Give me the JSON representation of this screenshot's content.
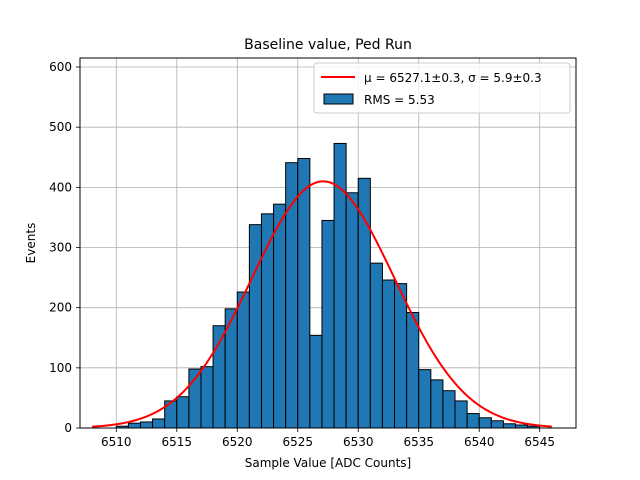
{
  "chart_data": {
    "type": "bar",
    "title": "Baseline value, Ped Run",
    "xlabel": "Sample Value [ADC Counts]",
    "ylabel": "Events",
    "xlim": [
      6507,
      6548
    ],
    "ylim": [
      0,
      615
    ],
    "x_ticks": [
      6510,
      6515,
      6520,
      6525,
      6530,
      6535,
      6540,
      6545
    ],
    "y_ticks": [
      0,
      100,
      200,
      300,
      400,
      500,
      600
    ],
    "grid": true,
    "legend_position": "top-right",
    "bin_width": 1,
    "bins": [
      {
        "x0": 6510,
        "count": 3
      },
      {
        "x0": 6511,
        "count": 8
      },
      {
        "x0": 6512,
        "count": 10
      },
      {
        "x0": 6513,
        "count": 15
      },
      {
        "x0": 6514,
        "count": 45
      },
      {
        "x0": 6515,
        "count": 52
      },
      {
        "x0": 6516,
        "count": 98
      },
      {
        "x0": 6517,
        "count": 102
      },
      {
        "x0": 6518,
        "count": 170
      },
      {
        "x0": 6519,
        "count": 198
      },
      {
        "x0": 6520,
        "count": 226
      },
      {
        "x0": 6521,
        "count": 338
      },
      {
        "x0": 6522,
        "count": 356
      },
      {
        "x0": 6523,
        "count": 372
      },
      {
        "x0": 6524,
        "count": 441
      },
      {
        "x0": 6525,
        "count": 448
      },
      {
        "x0": 6526,
        "count": 154
      },
      {
        "x0": 6527,
        "count": 345
      },
      {
        "x0": 6528,
        "count": 473
      },
      {
        "x0": 6529,
        "count": 391
      },
      {
        "x0": 6530,
        "count": 415
      },
      {
        "x0": 6531,
        "count": 274
      },
      {
        "x0": 6532,
        "count": 246
      },
      {
        "x0": 6533,
        "count": 240
      },
      {
        "x0": 6534,
        "count": 192
      },
      {
        "x0": 6535,
        "count": 97
      },
      {
        "x0": 6536,
        "count": 80
      },
      {
        "x0": 6537,
        "count": 62
      },
      {
        "x0": 6538,
        "count": 45
      },
      {
        "x0": 6539,
        "count": 24
      },
      {
        "x0": 6540,
        "count": 17
      },
      {
        "x0": 6541,
        "count": 12
      },
      {
        "x0": 6542,
        "count": 7
      },
      {
        "x0": 6543,
        "count": 5
      },
      {
        "x0": 6544,
        "count": 3
      }
    ],
    "fit": {
      "mu": 6527.1,
      "sigma": 5.9,
      "amplitude": 410,
      "x_range": [
        6508,
        6546
      ]
    },
    "series": [
      {
        "name": "$\\mu = 6527.1 \\pm 0.3$, $\\sigma = 5.9 \\pm 0.3$",
        "label": "μ = 6527.1±0.3, σ = 5.9±0.3",
        "type": "line",
        "color": "#ff0000"
      },
      {
        "name": "RMS = 5.53",
        "label": "RMS = 5.53",
        "type": "bar",
        "color": "#1f77b4",
        "edgecolor": "#000000"
      }
    ]
  }
}
